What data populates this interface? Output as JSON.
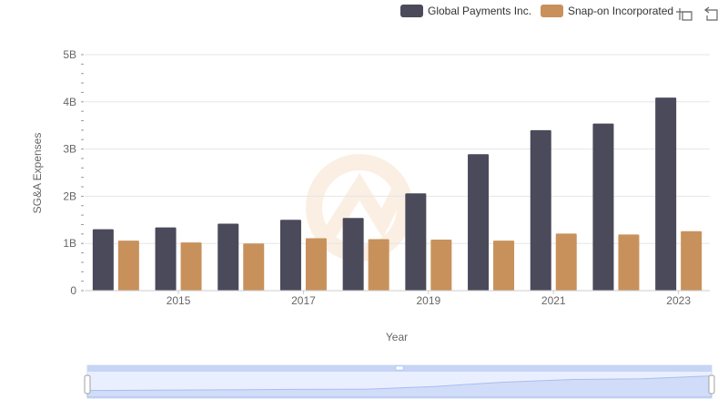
{
  "colors": {
    "series_0": "#4a4a5a",
    "series_1": "#c8915c",
    "grid": "#e6e6e6",
    "slider_fill": "#dbe4fd",
    "slider_border": "#c6d4f5",
    "watermark": "#f5dcc0"
  },
  "toolbar": {
    "zoom_icon": "zoom-icon",
    "restore_icon": "restore-icon"
  },
  "chart_data": {
    "type": "bar",
    "title": "",
    "xlabel": "Year",
    "ylabel": "SG&A Expenses",
    "ylim": [
      0,
      5000000000
    ],
    "y_ticks": [
      {
        "value": 0,
        "label": "0"
      },
      {
        "value": 1000000000,
        "label": "1B"
      },
      {
        "value": 2000000000,
        "label": "2B"
      },
      {
        "value": 3000000000,
        "label": "3B"
      },
      {
        "value": 4000000000,
        "label": "4B"
      },
      {
        "value": 5000000000,
        "label": "5B"
      }
    ],
    "categories": [
      "2014",
      "2015",
      "2016",
      "2017",
      "2018",
      "2019",
      "2020",
      "2021",
      "2022",
      "2023"
    ],
    "x_tick_labels": [
      "2015",
      "2017",
      "2019",
      "2021",
      "2023"
    ],
    "legend_position": "top-right",
    "series": [
      {
        "name": "Global Payments Inc.",
        "values": [
          1300000000,
          1340000000,
          1420000000,
          1500000000,
          1540000000,
          2060000000,
          2890000000,
          3400000000,
          3540000000,
          4090000000
        ]
      },
      {
        "name": "Snap-on Incorporated",
        "values": [
          1060000000,
          1020000000,
          1000000000,
          1110000000,
          1090000000,
          1080000000,
          1060000000,
          1210000000,
          1190000000,
          1260000000
        ]
      }
    ]
  }
}
